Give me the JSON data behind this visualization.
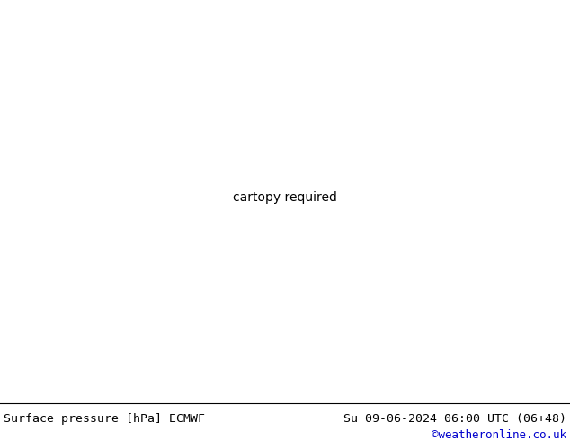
{
  "title_left": "Surface pressure [hPa] ECMWF",
  "title_right": "Su 09-06-2024 06:00 UTC (06+48)",
  "credit": "©weatheronline.co.uk",
  "credit_color": "#0000cc",
  "land_color_green": "#88cc66",
  "land_color_light": "#aaddaa",
  "sea_color": "#c8c8c8",
  "border_color": "#555555",
  "isobar_blue": "#0033ff",
  "isobar_black": "#000000",
  "isobar_red": "#ff0000",
  "bottom_bar_color": "#ffffff",
  "bottom_text_color": "#000000",
  "fig_width": 6.34,
  "fig_height": 4.9,
  "dpi": 100,
  "lon_min": -12,
  "lon_max": 30,
  "lat_min": 42,
  "lat_max": 60
}
